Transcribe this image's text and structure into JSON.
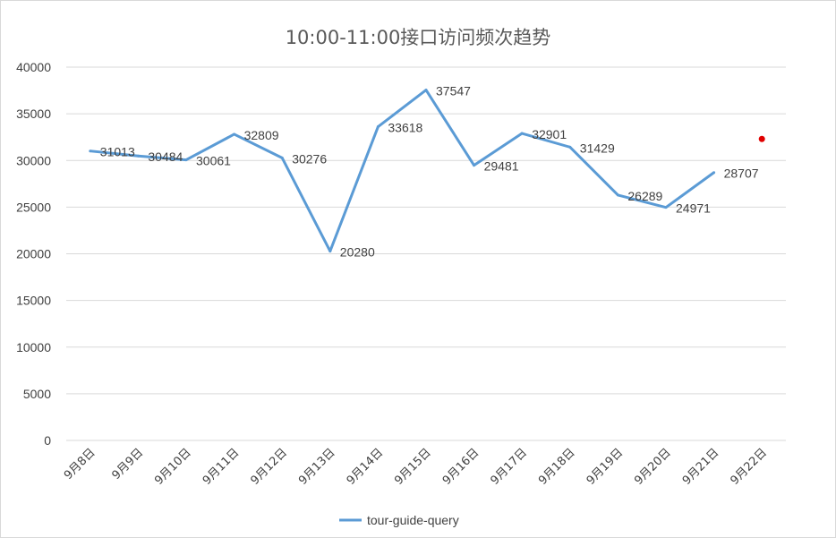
{
  "chart_data": {
    "type": "line",
    "title": "10:00-11:00接口访问频次趋势",
    "categories": [
      "9月8日",
      "9月9日",
      "9月10日",
      "9月11日",
      "9月12日",
      "9月13日",
      "9月14日",
      "9月15日",
      "9月16日",
      "9月17日",
      "9月18日",
      "9月19日",
      "9月20日",
      "9月21日",
      "9月22日"
    ],
    "series": [
      {
        "name": "tour-guide-query",
        "color": "#5b9bd5",
        "values": [
          31013,
          30484,
          30061,
          32809,
          30276,
          20280,
          33618,
          37547,
          29481,
          32901,
          31429,
          26289,
          24971,
          28707,
          null
        ]
      }
    ],
    "data_labels": [
      "31013",
      "30484",
      "30061",
      "32809",
      "30276",
      "20280",
      "33618",
      "37547",
      "29481",
      "32901",
      "31429",
      "26289",
      "24971",
      "28707"
    ],
    "yticks": [
      "0",
      "5000",
      "10000",
      "15000",
      "20000",
      "25000",
      "30000",
      "35000",
      "40000"
    ],
    "ylim": [
      0,
      40000
    ],
    "grid": true,
    "legend_position": "bottom",
    "annotation_marker": {
      "category": "9月22日",
      "value": 32300,
      "color": "#e00000"
    }
  }
}
